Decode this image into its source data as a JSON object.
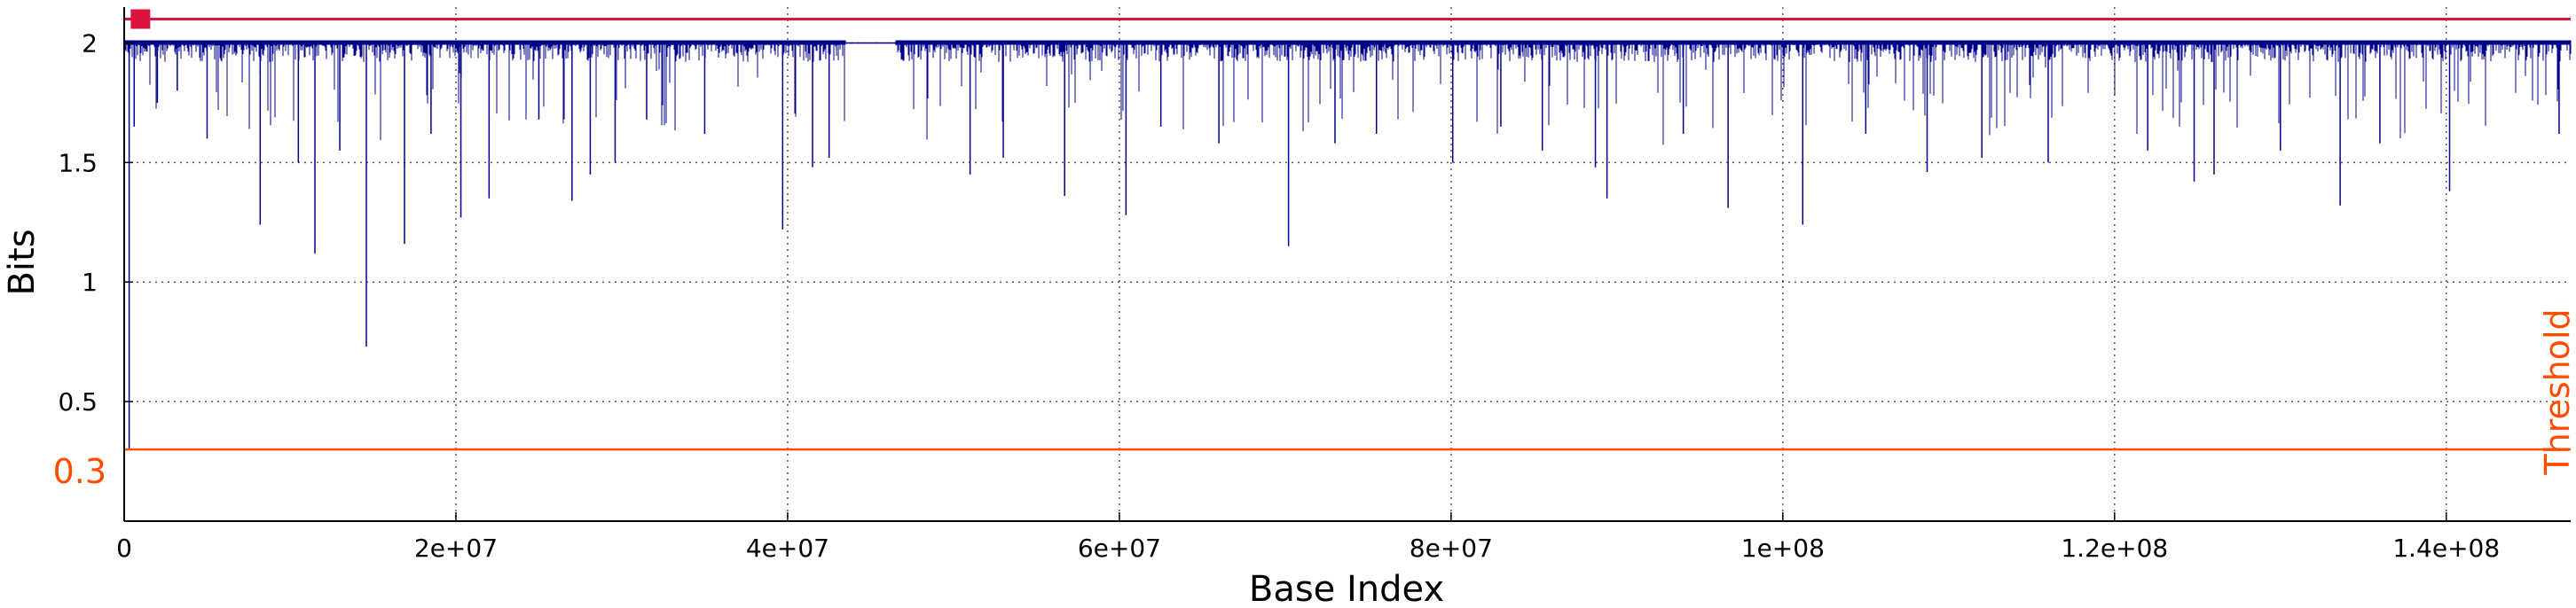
{
  "chart_data": {
    "type": "line",
    "xlabel": "Base Index",
    "ylabel": "Bits",
    "xlim": [
      0,
      147500000
    ],
    "ylim": [
      0.0,
      2.15
    ],
    "grid": true,
    "x_ticks": [
      0,
      20000000,
      40000000,
      60000000,
      80000000,
      100000000,
      120000000,
      140000000
    ],
    "x_tick_labels": [
      "0",
      "2e+07",
      "4e+07",
      "6e+07",
      "8e+07",
      "1e+08",
      "1.2e+08",
      "1.4e+08"
    ],
    "y_ticks": [
      0.5,
      1.0,
      1.5,
      2.0
    ],
    "y_tick_labels": [
      "0.5",
      "1",
      "1.5",
      "2"
    ],
    "series": [
      {
        "name": "bits",
        "color": "#00008b",
        "baseline": 2.0,
        "band_min": 1.92,
        "gap": [
          43500000,
          46500000
        ],
        "dips": [
          [
            300000,
            0.3
          ],
          [
            600000,
            1.65
          ],
          [
            2000000,
            1.75
          ],
          [
            3200000,
            1.8
          ],
          [
            5000000,
            1.6
          ],
          [
            8200000,
            1.24
          ],
          [
            10500000,
            1.5
          ],
          [
            11500000,
            1.12
          ],
          [
            13000000,
            1.55
          ],
          [
            14600000,
            0.73
          ],
          [
            16900000,
            1.16
          ],
          [
            18500000,
            1.62
          ],
          [
            20300000,
            1.27
          ],
          [
            22000000,
            1.35
          ],
          [
            25000000,
            1.68
          ],
          [
            27000000,
            1.34
          ],
          [
            28100000,
            1.45
          ],
          [
            29600000,
            1.5
          ],
          [
            31500000,
            1.68
          ],
          [
            35000000,
            1.62
          ],
          [
            39700000,
            1.22
          ],
          [
            41500000,
            1.48
          ],
          [
            42500000,
            1.52
          ],
          [
            51000000,
            1.45
          ],
          [
            53000000,
            1.52
          ],
          [
            56700000,
            1.36
          ],
          [
            60400000,
            1.28
          ],
          [
            62500000,
            1.65
          ],
          [
            66000000,
            1.58
          ],
          [
            70200000,
            1.15
          ],
          [
            73000000,
            1.58
          ],
          [
            75500000,
            1.62
          ],
          [
            80100000,
            1.5
          ],
          [
            83000000,
            1.65
          ],
          [
            85500000,
            1.55
          ],
          [
            88700000,
            1.48
          ],
          [
            89400000,
            1.35
          ],
          [
            94000000,
            1.62
          ],
          [
            96700000,
            1.31
          ],
          [
            101200000,
            1.24
          ],
          [
            105000000,
            1.62
          ],
          [
            108700000,
            1.46
          ],
          [
            112000000,
            1.52
          ],
          [
            116000000,
            1.5
          ],
          [
            122000000,
            1.55
          ],
          [
            124800000,
            1.42
          ],
          [
            126000000,
            1.45
          ],
          [
            130000000,
            1.55
          ],
          [
            133600000,
            1.32
          ],
          [
            136000000,
            1.58
          ],
          [
            140200000,
            1.38
          ],
          [
            146800000,
            1.62
          ]
        ]
      }
    ],
    "reference_lines": [
      {
        "name": "threshold",
        "y": 0.3,
        "color": "#ff4c00",
        "label": "Threshold",
        "value_label": "0.3"
      },
      {
        "name": "max",
        "y": 2.1,
        "color": "#dc143c",
        "marker_x": 500000
      }
    ]
  }
}
